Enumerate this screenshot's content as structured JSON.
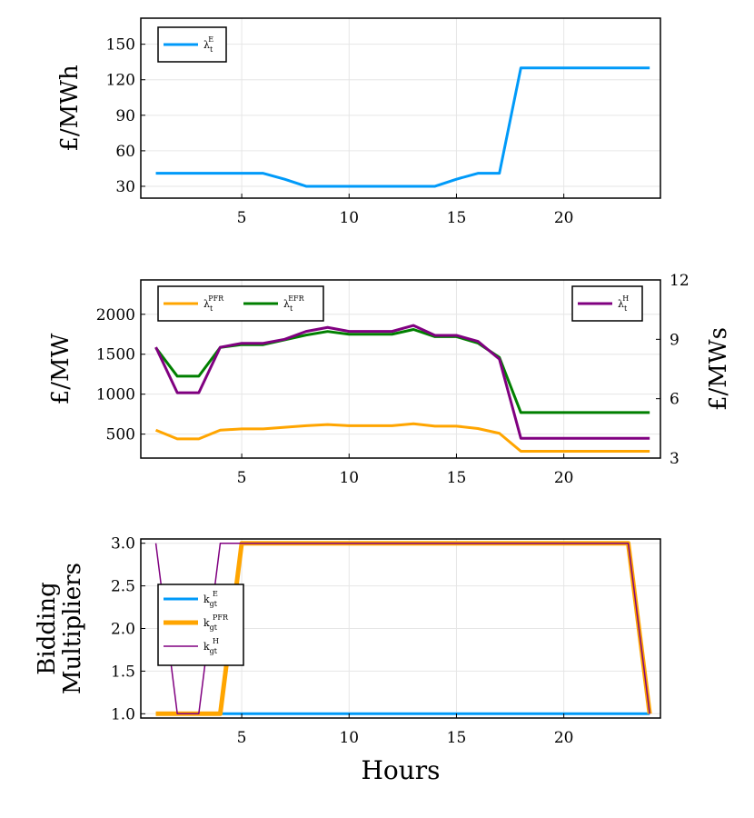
{
  "chart_data": [
    {
      "type": "line",
      "xlabel": "",
      "ylabel": "£/MWh",
      "xlim": [
        0.3,
        24.5
      ],
      "ylim": [
        20,
        172
      ],
      "xticks": [
        "5",
        "10",
        "15",
        "20"
      ],
      "xtick_values": [
        5,
        10,
        15,
        20
      ],
      "yticks": [
        "30",
        "60",
        "90",
        "120",
        "150"
      ],
      "ytick_values": [
        30,
        60,
        90,
        120,
        150
      ],
      "grid": true,
      "legend_position": "top-left",
      "x": [
        1,
        2,
        3,
        4,
        5,
        6,
        7,
        8,
        9,
        10,
        11,
        12,
        13,
        14,
        15,
        16,
        17,
        18,
        19,
        20,
        21,
        22,
        23,
        24
      ],
      "series": [
        {
          "name": "λ_t^E",
          "base": "λ",
          "sub": "t",
          "sup": "E",
          "color": "#009AF9",
          "width": 3,
          "values": [
            41,
            41,
            41,
            41,
            41,
            41,
            36,
            30,
            30,
            30,
            30,
            30,
            30,
            30,
            36,
            41,
            41,
            130,
            130,
            130,
            130,
            130,
            130,
            130
          ]
        }
      ]
    },
    {
      "type": "line",
      "xlabel": "",
      "ylabel": "£/MW",
      "ylabel_right": "£/MWs",
      "xlim": [
        0.3,
        24.5
      ],
      "ylim": [
        200,
        2430
      ],
      "ylim_right": [
        3,
        12
      ],
      "xticks": [
        "5",
        "10",
        "15",
        "20"
      ],
      "xtick_values": [
        5,
        10,
        15,
        20
      ],
      "yticks": [
        "500",
        "1000",
        "1500",
        "2000"
      ],
      "ytick_values": [
        500,
        1000,
        1500,
        2000
      ],
      "yticks_right": [
        "3",
        "6",
        "9",
        "12"
      ],
      "ytick_values_right": [
        3,
        6,
        9,
        12
      ],
      "grid": true,
      "legend_position": "top-left",
      "legend_position_right": "top-right",
      "x": [
        1,
        2,
        3,
        4,
        5,
        6,
        7,
        8,
        9,
        10,
        11,
        12,
        13,
        14,
        15,
        16,
        17,
        18,
        19,
        20,
        21,
        22,
        23,
        24
      ],
      "series": [
        {
          "name": "λ_t^PFR",
          "base": "λ",
          "sub": "t",
          "sup": "PFR",
          "axis": "left",
          "color": "#FFA500",
          "width": 3,
          "values": [
            550,
            440,
            440,
            550,
            565,
            565,
            585,
            605,
            620,
            605,
            605,
            605,
            630,
            600,
            600,
            570,
            510,
            285,
            285,
            285,
            285,
            285,
            285,
            285
          ]
        },
        {
          "name": "λ_t^EFR",
          "base": "λ",
          "sub": "t",
          "sup": "EFR",
          "axis": "left",
          "color": "#007F00",
          "width": 3,
          "values": [
            1580,
            1225,
            1225,
            1585,
            1620,
            1620,
            1680,
            1740,
            1785,
            1750,
            1750,
            1750,
            1810,
            1720,
            1720,
            1640,
            1460,
            770,
            770,
            770,
            770,
            770,
            770,
            770
          ]
        },
        {
          "name": "λ_t^H",
          "base": "λ",
          "sub": "t",
          "sup": "H",
          "axis": "right",
          "color": "#800080",
          "width": 3,
          "values": [
            8.6,
            6.3,
            6.3,
            8.6,
            8.8,
            8.8,
            9.0,
            9.4,
            9.6,
            9.4,
            9.4,
            9.4,
            9.7,
            9.2,
            9.2,
            8.9,
            8.0,
            4.0,
            4.0,
            4.0,
            4.0,
            4.0,
            4.0,
            4.0
          ]
        }
      ]
    },
    {
      "type": "line",
      "xlabel": "Hours",
      "ylabel": [
        "Bidding",
        "Multipliers"
      ],
      "xlim": [
        0.3,
        24.5
      ],
      "ylim": [
        0.95,
        3.05
      ],
      "xticks": [
        "5",
        "10",
        "15",
        "20"
      ],
      "xtick_values": [
        5,
        10,
        15,
        20
      ],
      "yticks": [
        "1.0",
        "1.5",
        "2.0",
        "2.5",
        "3.0"
      ],
      "ytick_values": [
        1.0,
        1.5,
        2.0,
        2.5,
        3.0
      ],
      "grid": true,
      "legend_position": "middle-left",
      "x": [
        1,
        2,
        3,
        4,
        5,
        6,
        7,
        8,
        9,
        10,
        11,
        12,
        13,
        14,
        15,
        16,
        17,
        18,
        19,
        20,
        21,
        22,
        23,
        24
      ],
      "series": [
        {
          "name": "k_gt^E",
          "base": "k",
          "sub": "gt",
          "sup": "E",
          "color": "#009AF9",
          "width": 3,
          "values": [
            1,
            1,
            1,
            1,
            1,
            1,
            1,
            1,
            1,
            1,
            1,
            1,
            1,
            1,
            1,
            1,
            1,
            1,
            1,
            1,
            1,
            1,
            1,
            1
          ]
        },
        {
          "name": "k_gt^PFR",
          "base": "k",
          "sub": "gt",
          "sup": "PFR",
          "color": "#FFA500",
          "width": 5,
          "values": [
            1,
            1,
            1,
            1,
            3,
            3,
            3,
            3,
            3,
            3,
            3,
            3,
            3,
            3,
            3,
            3,
            3,
            3,
            3,
            3,
            3,
            3,
            3,
            1
          ]
        },
        {
          "name": "k_gt^H",
          "base": "k",
          "sub": "gt",
          "sup": "H",
          "color": "#800080",
          "width": 1.5,
          "values": [
            3,
            1,
            1,
            3,
            3,
            3,
            3,
            3,
            3,
            3,
            3,
            3,
            3,
            3,
            3,
            3,
            3,
            3,
            3,
            3,
            3,
            3,
            3,
            1
          ]
        }
      ]
    }
  ]
}
